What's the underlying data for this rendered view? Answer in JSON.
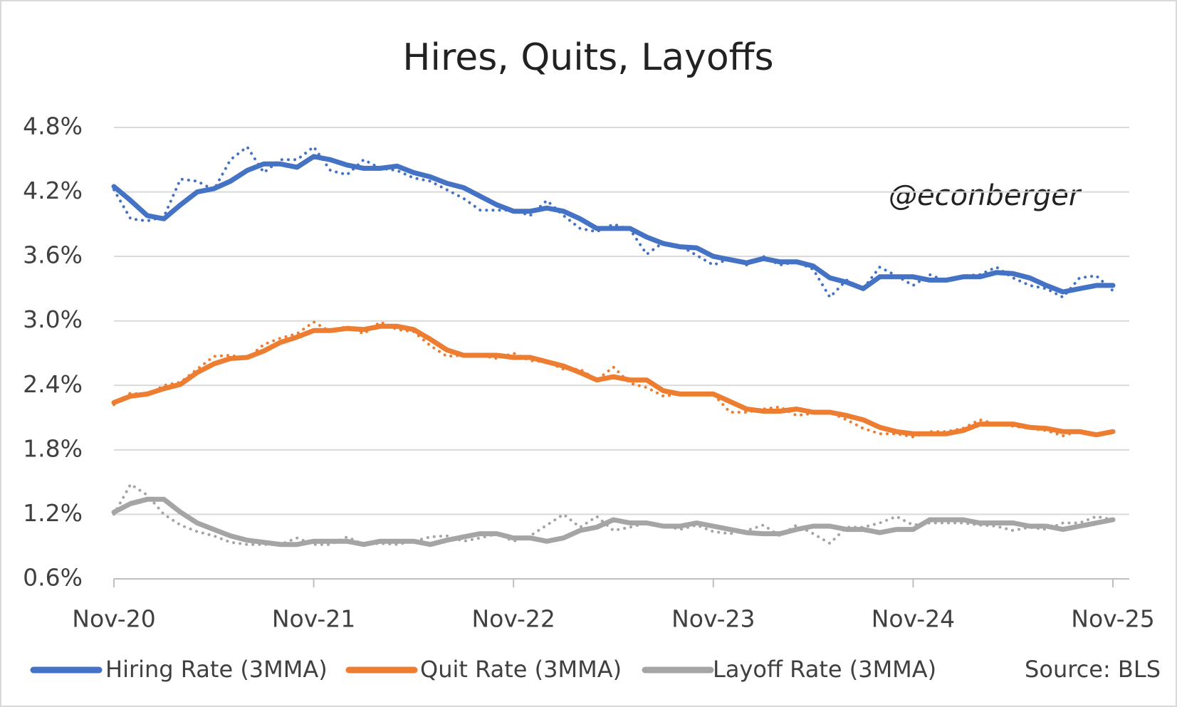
{
  "chart_data": {
    "type": "line",
    "title": "Hires, Quits, Layoffs",
    "annotation": "@econberger",
    "source": "Source: BLS",
    "categories": [
      "Nov-20",
      null,
      null,
      null,
      null,
      null,
      null,
      null,
      null,
      null,
      null,
      null,
      "Nov-21",
      null,
      null,
      null,
      null,
      null,
      null,
      null,
      null,
      null,
      null,
      null,
      "Nov-22",
      null,
      null,
      null,
      null,
      null,
      null,
      null,
      null,
      null,
      null,
      null,
      "Nov-23",
      null,
      null,
      null,
      null,
      null,
      null,
      null,
      null,
      null,
      null,
      null,
      "Nov-24",
      null,
      null,
      null,
      null,
      null,
      null,
      null,
      null,
      null,
      null,
      null,
      "Nov-25"
    ],
    "ylim": [
      0.6,
      4.8
    ],
    "yticks": [
      {
        "value": 0.6,
        "label": "0.6%"
      },
      {
        "value": 1.2,
        "label": "1.2%"
      },
      {
        "value": 1.8,
        "label": "1.8%"
      },
      {
        "value": 2.4,
        "label": "2.4%"
      },
      {
        "value": 3.0,
        "label": "3.0%"
      },
      {
        "value": 3.6,
        "label": "3.6%"
      },
      {
        "value": 4.2,
        "label": "4.2%"
      },
      {
        "value": 4.8,
        "label": "4.8%"
      }
    ],
    "grid": true,
    "series": [
      {
        "name": "Hiring Rate (3MMA)",
        "color": "#4472c4",
        "style": "solid",
        "values": [
          4.25,
          4.12,
          3.98,
          3.95,
          4.08,
          4.2,
          4.23,
          4.3,
          4.4,
          4.46,
          4.46,
          4.43,
          4.53,
          4.5,
          4.45,
          4.42,
          4.42,
          4.44,
          4.38,
          4.34,
          4.28,
          4.24,
          4.16,
          4.08,
          4.02,
          4.02,
          4.05,
          4.02,
          3.95,
          3.86,
          3.86,
          3.86,
          3.78,
          3.72,
          3.69,
          3.68,
          3.6,
          3.57,
          3.54,
          3.58,
          3.55,
          3.55,
          3.51,
          3.4,
          3.36,
          3.3,
          3.41,
          3.41,
          3.41,
          3.38,
          3.38,
          3.41,
          3.41,
          3.45,
          3.44,
          3.4,
          3.33,
          3.27,
          3.3,
          3.33,
          3.33
        ]
      },
      {
        "name": "Quit Rate (3MMA)",
        "color": "#ed7d31",
        "style": "solid",
        "values": [
          2.24,
          2.3,
          2.32,
          2.37,
          2.41,
          2.52,
          2.6,
          2.65,
          2.66,
          2.72,
          2.8,
          2.85,
          2.91,
          2.91,
          2.93,
          2.92,
          2.95,
          2.95,
          2.92,
          2.83,
          2.73,
          2.68,
          2.68,
          2.68,
          2.66,
          2.66,
          2.62,
          2.58,
          2.52,
          2.45,
          2.48,
          2.45,
          2.45,
          2.35,
          2.32,
          2.32,
          2.32,
          2.25,
          2.18,
          2.16,
          2.16,
          2.18,
          2.15,
          2.15,
          2.12,
          2.08,
          2.01,
          1.97,
          1.95,
          1.95,
          1.95,
          1.98,
          2.04,
          2.04,
          2.04,
          2.01,
          2.0,
          1.97,
          1.97,
          1.94,
          1.97
        ]
      },
      {
        "name": "Layoff Rate (3MMA)",
        "color": "#a5a5a5",
        "style": "solid",
        "values": [
          1.22,
          1.3,
          1.34,
          1.34,
          1.22,
          1.12,
          1.06,
          1.0,
          0.96,
          0.94,
          0.92,
          0.92,
          0.95,
          0.95,
          0.95,
          0.92,
          0.95,
          0.95,
          0.95,
          0.92,
          0.96,
          0.99,
          1.02,
          1.02,
          0.98,
          0.98,
          0.95,
          0.98,
          1.05,
          1.08,
          1.15,
          1.12,
          1.12,
          1.09,
          1.09,
          1.12,
          1.09,
          1.06,
          1.03,
          1.02,
          1.02,
          1.06,
          1.09,
          1.09,
          1.06,
          1.06,
          1.03,
          1.06,
          1.06,
          1.15,
          1.15,
          1.15,
          1.12,
          1.12,
          1.12,
          1.09,
          1.09,
          1.06,
          1.09,
          1.12,
          1.15
        ]
      },
      {
        "color": "#4472c4",
        "style": "dotted",
        "values": [
          4.22,
          3.95,
          3.93,
          3.97,
          4.32,
          4.3,
          4.22,
          4.5,
          4.62,
          4.38,
          4.5,
          4.5,
          4.62,
          4.4,
          4.36,
          4.5,
          4.42,
          4.4,
          4.33,
          4.3,
          4.22,
          4.14,
          4.03,
          4.03,
          4.03,
          3.98,
          4.12,
          3.98,
          3.86,
          3.83,
          3.9,
          3.85,
          3.62,
          3.73,
          3.7,
          3.61,
          3.52,
          3.58,
          3.52,
          3.6,
          3.52,
          3.55,
          3.48,
          3.22,
          3.38,
          3.3,
          3.5,
          3.42,
          3.33,
          3.43,
          3.37,
          3.42,
          3.43,
          3.5,
          3.4,
          3.33,
          3.3,
          3.22,
          3.4,
          3.42,
          3.28
        ]
      },
      {
        "color": "#ed7d31",
        "style": "dotted",
        "values": [
          2.22,
          2.33,
          2.31,
          2.4,
          2.43,
          2.55,
          2.67,
          2.68,
          2.65,
          2.78,
          2.84,
          2.88,
          2.99,
          2.9,
          2.95,
          2.88,
          2.99,
          2.92,
          2.9,
          2.77,
          2.67,
          2.68,
          2.68,
          2.65,
          2.7,
          2.63,
          2.62,
          2.55,
          2.55,
          2.45,
          2.57,
          2.42,
          2.38,
          2.3,
          2.32,
          2.32,
          2.32,
          2.15,
          2.15,
          2.18,
          2.2,
          2.12,
          2.14,
          2.15,
          2.08,
          2.0,
          1.95,
          1.95,
          1.92,
          1.97,
          1.97,
          2.0,
          2.08,
          2.04,
          2.02,
          2.0,
          1.98,
          1.93,
          1.98,
          1.95,
          1.98
        ]
      },
      {
        "color": "#a5a5a5",
        "style": "dotted",
        "values": [
          1.2,
          1.48,
          1.38,
          1.2,
          1.1,
          1.04,
          1.0,
          0.94,
          0.92,
          0.92,
          0.92,
          0.98,
          0.92,
          0.92,
          0.99,
          0.92,
          0.93,
          0.92,
          0.95,
          0.99,
          1.0,
          0.95,
          0.98,
          1.02,
          0.95,
          1.0,
          1.1,
          1.2,
          1.08,
          1.18,
          1.05,
          1.08,
          1.12,
          1.1,
          1.06,
          1.1,
          1.04,
          1.02,
          1.05,
          1.1,
          1.0,
          1.1,
          1.02,
          0.93,
          1.08,
          1.08,
          1.12,
          1.18,
          1.1,
          1.12,
          1.12,
          1.12,
          1.1,
          1.09,
          1.05,
          1.08,
          1.06,
          1.12,
          1.12,
          1.18,
          1.15
        ]
      }
    ]
  }
}
